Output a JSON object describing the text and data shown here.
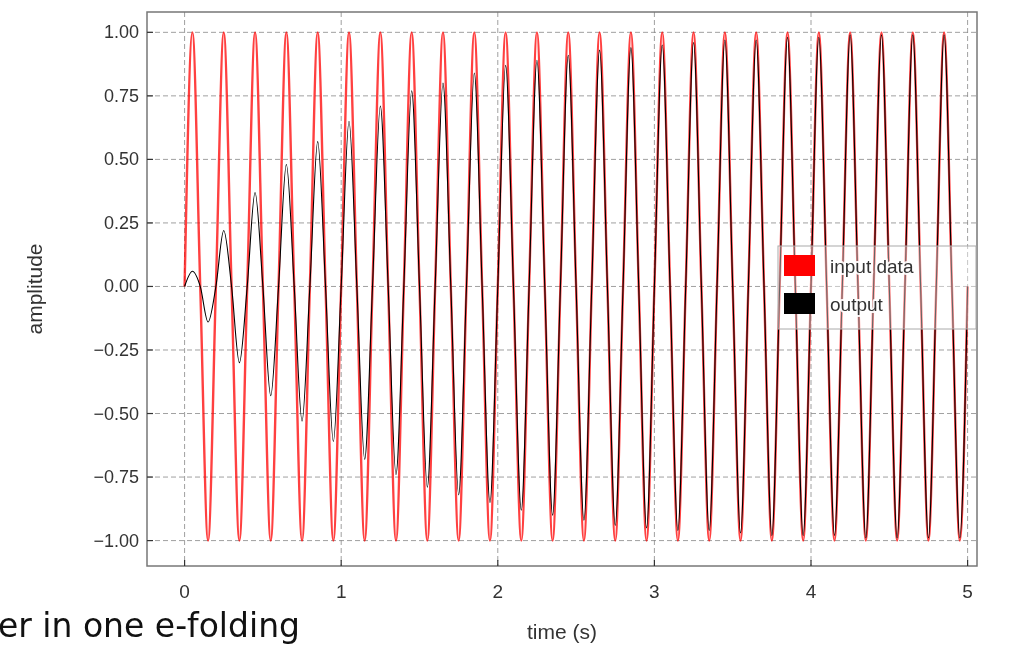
{
  "chart_data": {
    "type": "line",
    "xlabel": "time (s)",
    "ylabel": "amplitude",
    "annotations": [
      "er in one e-folding"
    ],
    "x": [
      0,
      0.05,
      0.1,
      0.15,
      0.2,
      0.25,
      0.3,
      0.35,
      0.4,
      0.45,
      0.5,
      0.55,
      0.6,
      0.65,
      0.7,
      0.75,
      0.8,
      0.85,
      0.9,
      0.95,
      1,
      1.05,
      1.1,
      1.15,
      1.2,
      1.25,
      1.3,
      1.35,
      1.4,
      1.45,
      1.5,
      1.55,
      1.6,
      1.65,
      1.7,
      1.75,
      1.8,
      1.85,
      1.9,
      1.95,
      2,
      2.05,
      2.1,
      2.15,
      2.2,
      2.25,
      2.3,
      2.35,
      2.4,
      2.45,
      2.5,
      2.55,
      2.6,
      2.65,
      2.7,
      2.75,
      2.8,
      2.85,
      2.9,
      2.95,
      3,
      3.05,
      3.1,
      3.15,
      3.2,
      3.25,
      3.3,
      3.35,
      3.4,
      3.45,
      3.5,
      3.55,
      3.6,
      3.65,
      3.7,
      3.75,
      3.8,
      3.85,
      3.9,
      3.95,
      4,
      4.05,
      4.1,
      4.15,
      4.2,
      4.25,
      4.3,
      4.35,
      4.4,
      4.45,
      4.5,
      4.55,
      4.6,
      4.65,
      4.7,
      4.75,
      4.8,
      4.85,
      4.9,
      4.95,
      5
    ],
    "series": [
      {
        "name": "input data",
        "color": "#ff0000",
        "values": [
          0,
          1,
          0,
          -1,
          0,
          1,
          0,
          -1,
          0,
          1,
          0,
          -1,
          0,
          1,
          0,
          -1,
          0,
          1,
          0,
          -1,
          0,
          1,
          0,
          -1,
          0,
          1,
          0,
          -1,
          0,
          1,
          0,
          -1,
          0,
          1,
          0,
          -1,
          0,
          1,
          0,
          -1,
          0,
          1,
          0,
          -1,
          0,
          1,
          0,
          -1,
          0,
          1,
          0,
          -1,
          0,
          1,
          0,
          -1,
          0,
          1,
          0,
          -1,
          0,
          1,
          0,
          -1,
          0,
          1,
          0,
          -1,
          0,
          1,
          0,
          -1,
          0,
          1,
          0,
          -1,
          0,
          1,
          0,
          -1,
          0,
          1,
          0,
          -1,
          0,
          1,
          0,
          -1,
          0,
          1,
          0,
          -1,
          0,
          1,
          0,
          -1,
          0,
          1,
          0,
          -1,
          0
        ]
      },
      {
        "name": "output",
        "color": "#000000",
        "values": [
          0,
          0.06,
          0,
          -0.14,
          0,
          0.22,
          0,
          -0.3,
          0,
          0.37,
          0,
          -0.43,
          0,
          0.48,
          0,
          -0.53,
          0,
          0.57,
          0,
          -0.61,
          0,
          0.65,
          0,
          -0.68,
          0,
          0.71,
          0,
          -0.74,
          0,
          0.77,
          0,
          -0.79,
          0,
          0.8,
          0,
          -0.82,
          0,
          0.84,
          0,
          -0.85,
          0,
          0.87,
          0,
          -0.88,
          0,
          0.89,
          0,
          -0.9,
          0,
          0.91,
          0,
          -0.92,
          0,
          0.93,
          0,
          -0.94,
          0,
          0.94,
          0,
          -0.95,
          0,
          0.95,
          0,
          -0.96,
          0,
          0.96,
          0,
          -0.96,
          0,
          0.97,
          0,
          -0.97,
          0,
          0.97,
          0,
          -0.98,
          0,
          0.98,
          0,
          -0.98,
          0,
          0.98,
          0,
          -0.98,
          0,
          0.99,
          0,
          -0.99,
          0,
          0.99,
          0,
          -0.99,
          0,
          0.99,
          0,
          -0.99,
          0,
          0.99,
          0,
          -0.99,
          0
        ]
      }
    ],
    "xlim": [
      -0.24,
      5.06
    ],
    "ylim": [
      -1.1,
      1.08
    ],
    "xticks": [
      0,
      1,
      2,
      3,
      4,
      5
    ],
    "yticks": [
      {
        "value": -1,
        "label": "−1.00"
      },
      {
        "value": -0.75,
        "label": "−0.75"
      },
      {
        "value": -0.5,
        "label": "−0.50"
      },
      {
        "value": -0.25,
        "label": "−0.25"
      },
      {
        "value": 0,
        "label": "0.00"
      },
      {
        "value": 0.25,
        "label": "0.25"
      },
      {
        "value": 0.5,
        "label": "0.50"
      },
      {
        "value": 0.75,
        "label": "0.75"
      },
      {
        "value": 1,
        "label": "1.00"
      }
    ],
    "grid": true,
    "legend": "right",
    "line_style": "solid"
  }
}
